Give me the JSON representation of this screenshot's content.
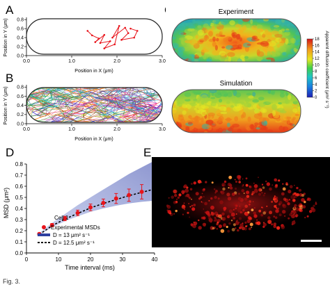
{
  "caption": "Fig. 3.",
  "colors": {
    "trajectory": "#e8141b",
    "msd_marker": "#e8141b",
    "band": "#2d3fa0",
    "cell_outline": "#222222"
  },
  "panels": {
    "A": {
      "label": "A",
      "ylabel": "Position in Y (μm)",
      "xlabel": "Position in X (μm)",
      "xticks": [
        "0.0",
        "1.0",
        "2.0",
        "3.0"
      ],
      "yticks": [
        "0.0",
        "0.2",
        "0.4",
        "0.6",
        "0.8"
      ]
    },
    "B": {
      "label": "B",
      "ylabel": "Position in Y (μm)",
      "xlabel": "Position in X (μm)",
      "xticks": [
        "0.0",
        "1.0",
        "2.0",
        "3.0"
      ],
      "yticks": [
        "0.0",
        "0.2",
        "0.4",
        "0.6",
        "0.8"
      ]
    },
    "C": {
      "label": "C",
      "top_title": "Experiment",
      "bottom_title": "Simulation",
      "colorbar_label": "Apparent diffusion coefficient (μm² s⁻¹)",
      "colorbar_ticks": [
        "18",
        "16",
        "14",
        "12",
        "10",
        "8",
        "6",
        "4",
        "2",
        "0"
      ]
    },
    "D": {
      "label": "D",
      "ylabel": "MSD (μm²)",
      "xlabel": "Time interval (ms)",
      "cell_label": "Cell 1",
      "legend": [
        "Experimental MSDs",
        "D = 13 μm² s⁻¹",
        "D = 12.5 μm² s⁻¹"
      ]
    },
    "E": {
      "label": "E"
    }
  },
  "chart_data": [
    {
      "type": "line",
      "panel": "A",
      "xlabel": "Position in X (μm)",
      "ylabel": "Position in Y (μm)",
      "xlim": [
        0,
        3
      ],
      "ylim": [
        0,
        0.85
      ],
      "series": [
        {
          "x": [
            1.35,
            1.45,
            1.6,
            1.52,
            1.72,
            1.63,
            1.85,
            1.72,
            1.95,
            2.05,
            1.9,
            2.18,
            2.25,
            2.1,
            2.38,
            2.45,
            2.3
          ],
          "y": [
            0.55,
            0.45,
            0.38,
            0.3,
            0.46,
            0.28,
            0.32,
            0.16,
            0.25,
            0.66,
            0.4,
            0.62,
            0.5,
            0.35,
            0.4,
            0.55,
            0.6
          ]
        }
      ]
    },
    {
      "type": "line",
      "panel": "B",
      "xlabel": "Position in X (μm)",
      "ylabel": "Position in Y (μm)",
      "xlim": [
        0,
        3
      ],
      "ylim": [
        0,
        0.85
      ]
    },
    {
      "type": "heatmap",
      "panel": "C",
      "colorbar_range": [
        0,
        18
      ]
    },
    {
      "type": "scatter",
      "panel": "D",
      "xlabel": "Time interval (ms)",
      "ylabel": "MSD (μm²)",
      "xlim": [
        0,
        40
      ],
      "ylim": [
        0,
        0.8
      ],
      "xticks": [
        0,
        10,
        20,
        30,
        40
      ],
      "yticks": [
        0.0,
        0.1,
        0.2,
        0.3,
        0.4,
        0.5,
        0.6,
        0.7,
        0.8
      ],
      "x": [
        4,
        8,
        12,
        16,
        20,
        24,
        28,
        32,
        36,
        40
      ],
      "series": [
        {
          "name": "Experimental MSDs",
          "values": [
            0.17,
            0.25,
            0.31,
            0.36,
            0.41,
            0.45,
            0.49,
            0.52,
            0.55,
            0.57
          ],
          "error": [
            0.01,
            0.015,
            0.02,
            0.025,
            0.03,
            0.035,
            0.045,
            0.055,
            0.065,
            0.075
          ]
        },
        {
          "name": "D = 13 μm² s⁻¹",
          "band_lower": [
            0.16,
            0.23,
            0.285,
            0.33,
            0.37,
            0.4,
            0.425,
            0.445,
            0.46,
            0.47
          ],
          "band_upper": [
            0.18,
            0.27,
            0.35,
            0.43,
            0.5,
            0.57,
            0.64,
            0.71,
            0.77,
            0.83
          ]
        },
        {
          "name": "D = 12.5 μm² s⁻¹",
          "values": [
            0.165,
            0.245,
            0.305,
            0.355,
            0.405,
            0.445,
            0.48,
            0.515,
            0.545,
            0.575
          ]
        }
      ]
    }
  ]
}
